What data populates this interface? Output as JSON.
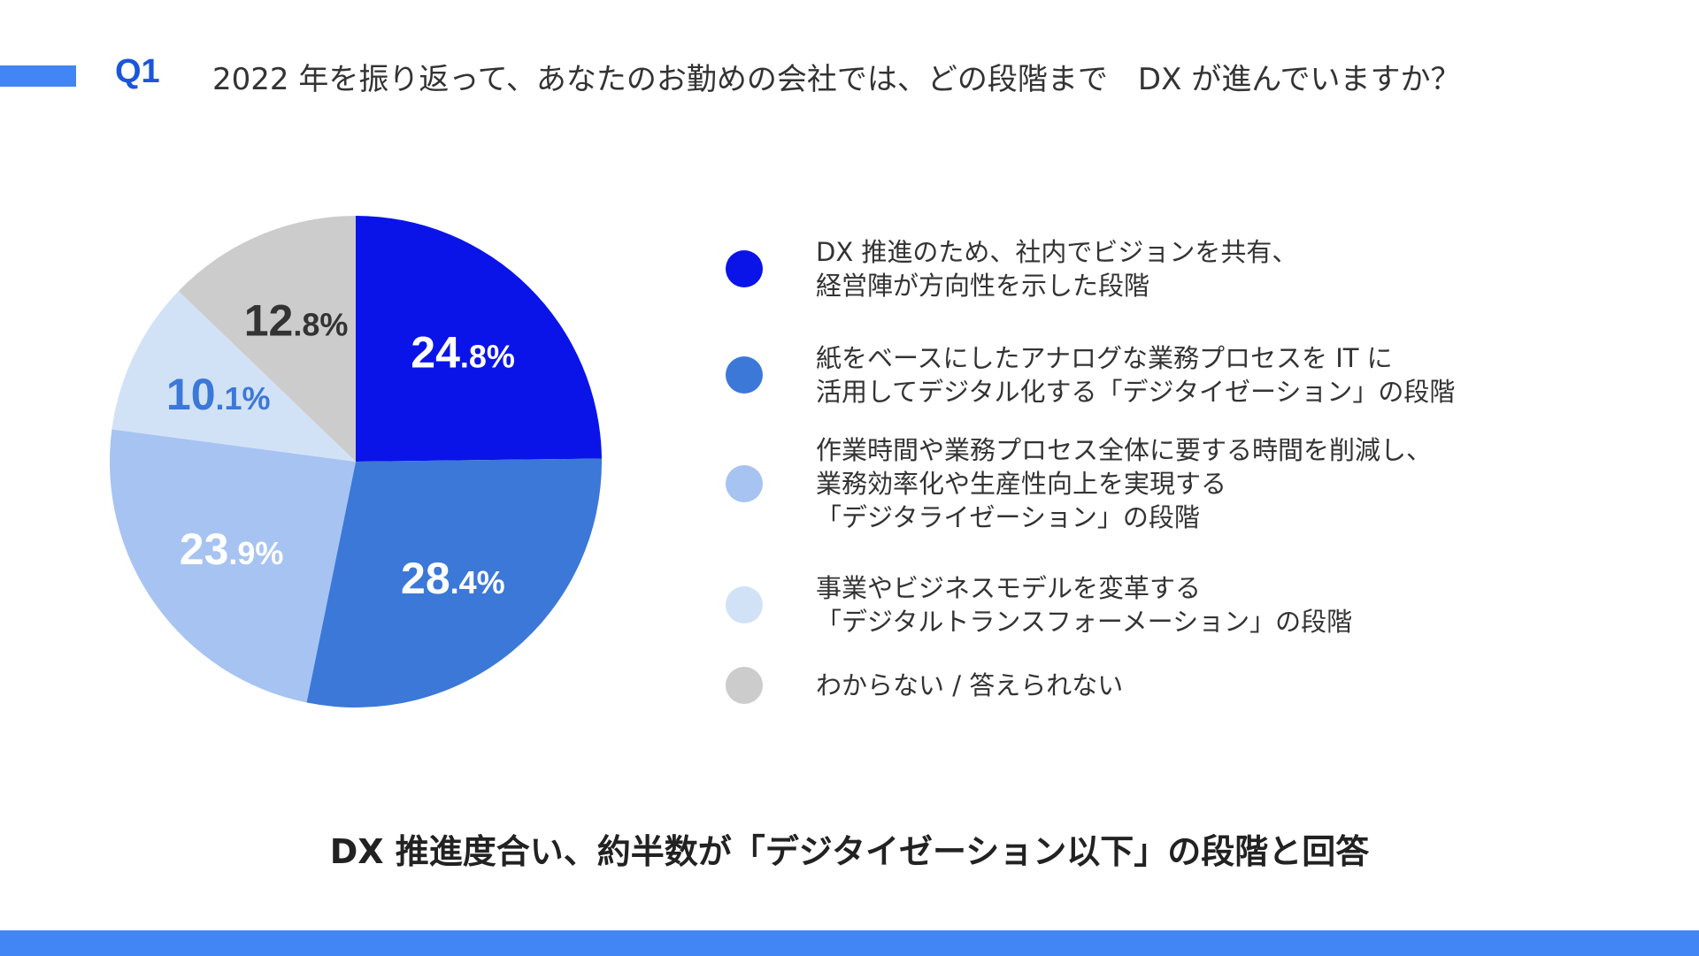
{
  "header": {
    "q_label": "Q1",
    "question": "2022 年を振り返って、あなたのお勤めの会社では、どの段階まで　DX が進んでいますか？"
  },
  "chart_data": {
    "type": "pie",
    "slices": [
      {
        "label": "DX 推進のため、社内でビジョンを共有、\n経営陣が方向性を示した段階",
        "value": 24.8,
        "color": "#0a14e8",
        "text_color": "#ffffff"
      },
      {
        "label": "紙をベースにしたアナログな業務プロセスを IT に\n活用してデジタル化する「デジタイゼーション」の段階",
        "value": 28.4,
        "color": "#3b78d8",
        "text_color": "#ffffff"
      },
      {
        "label": "作業時間や業務プロセス全体に要する時間を削減し、\n業務効率化や生産性向上を実現する\n「デジタライゼーション」の段階",
        "value": 23.9,
        "color": "#a6c3f2",
        "text_color": "#ffffff"
      },
      {
        "label": "事業やビジネスモデルを変革する\n「デジタルトランスフォーメーション」の段階",
        "value": 10.1,
        "color": "#d2e2f6",
        "text_color": "#3b78d8"
      },
      {
        "label": "わからない / 答えられない",
        "value": 12.8,
        "color": "#cccccc",
        "text_color": "#333333"
      }
    ]
  },
  "conclusion": "DX 推進度合い、約半数が「デジタイゼーション以下」の段階と回答"
}
